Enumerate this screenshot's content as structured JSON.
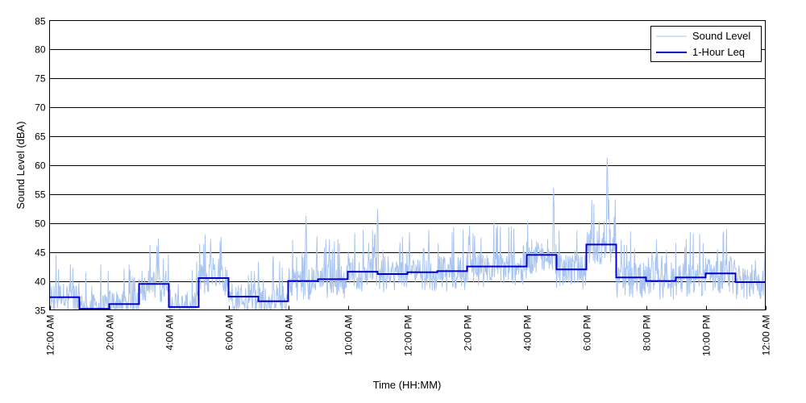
{
  "chart_data": {
    "type": "line",
    "title": "",
    "xlabel": "Time (HH:MM)",
    "ylabel": "Sound Level (dBA)",
    "xlim": [
      0,
      24
    ],
    "ylim": [
      35,
      85
    ],
    "y_ticks": [
      35,
      40,
      45,
      50,
      55,
      60,
      65,
      70,
      75,
      80,
      85
    ],
    "x_ticks": [
      0,
      2,
      4,
      6,
      8,
      10,
      12,
      14,
      16,
      18,
      20,
      22,
      24
    ],
    "x_tick_labels": [
      "12:00 AM",
      "2:00 AM",
      "4:00 AM",
      "6:00 AM",
      "8:00 AM",
      "10:00 AM",
      "12:00 PM",
      "2:00 PM",
      "4:00 PM",
      "6:00 PM",
      "8:00 PM",
      "10:00 PM",
      "12:00 AM"
    ],
    "grid": "horizontal",
    "legend_position": "top-right",
    "series": [
      {
        "name": "Sound Level",
        "color": "#a8c4f0",
        "note": "noisy 1-minute readings; peaks read from chart",
        "peaks": [
          {
            "x": 0.7,
            "y": 41.5
          },
          {
            "x": 3.6,
            "y": 46.0
          },
          {
            "x": 5.4,
            "y": 47.2
          },
          {
            "x": 8.6,
            "y": 51.2
          },
          {
            "x": 10.7,
            "y": 46.5
          },
          {
            "x": 11.0,
            "y": 52.4
          },
          {
            "x": 16.9,
            "y": 56.1
          },
          {
            "x": 18.7,
            "y": 61.3
          },
          {
            "x": 18.75,
            "y": 54.0
          },
          {
            "x": 24.0,
            "y": 47.0
          }
        ]
      },
      {
        "name": "1-Hour Leq",
        "color": "#0000cc",
        "hours": [
          0,
          1,
          2,
          3,
          4,
          5,
          6,
          7,
          8,
          9,
          10,
          11,
          12,
          13,
          14,
          15,
          16,
          17,
          18,
          19,
          20,
          21,
          22,
          23
        ],
        "values": [
          37.2,
          35.2,
          36.0,
          39.5,
          35.5,
          40.5,
          37.3,
          36.5,
          40.0,
          40.3,
          41.6,
          41.2,
          41.5,
          41.7,
          42.5,
          42.5,
          44.5,
          42.0,
          46.3,
          40.6,
          40.0,
          40.6,
          41.3,
          39.8
        ]
      }
    ]
  }
}
